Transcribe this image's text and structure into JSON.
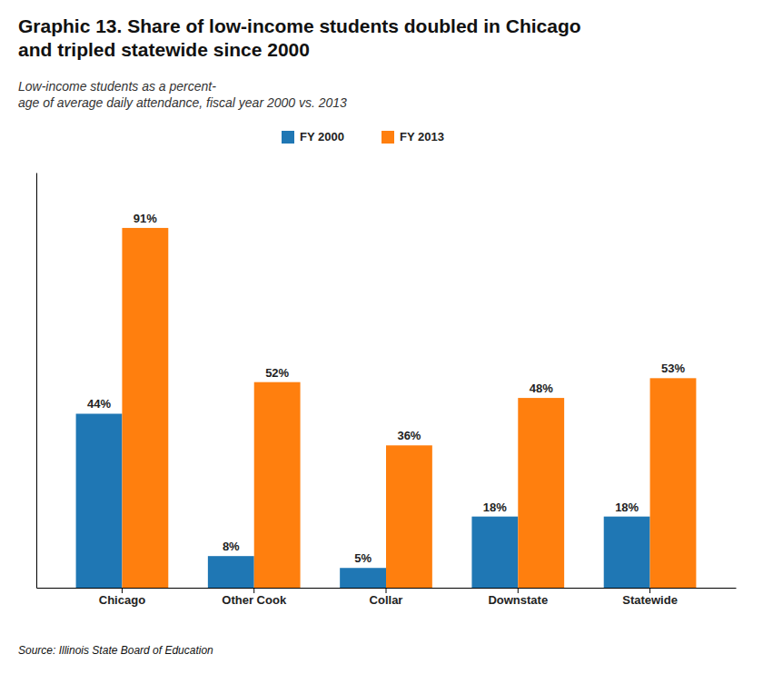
{
  "chart_data": {
    "type": "bar",
    "title": "Graphic 13. Share of low-income students doubled in Chicago\nand tripled statewide since 2000",
    "subtitle": "Low-income students as a percent-\nage of average daily attendance, fiscal year 2000 vs. 2013",
    "annotations": [
      "Source: Illinois State Board of Education"
    ],
    "categories": [
      "Chicago",
      "Other Cook",
      "Collar",
      "Downstate",
      "Statewide"
    ],
    "series": [
      {
        "name": "FY 2000",
        "values": [
          44,
          8,
          5,
          18,
          18
        ],
        "value_labels": [
          "44%",
          "8%",
          "5%",
          "18%",
          "18%"
        ]
      },
      {
        "name": "FY 2013",
        "values": [
          91,
          52,
          36,
          48,
          53
        ],
        "value_labels": [
          "91%",
          "52%",
          "36%",
          "48%",
          "53%"
        ]
      }
    ],
    "ylim": [
      0,
      105
    ],
    "data_labels": true,
    "tick_labels": "x",
    "grid": false
  }
}
